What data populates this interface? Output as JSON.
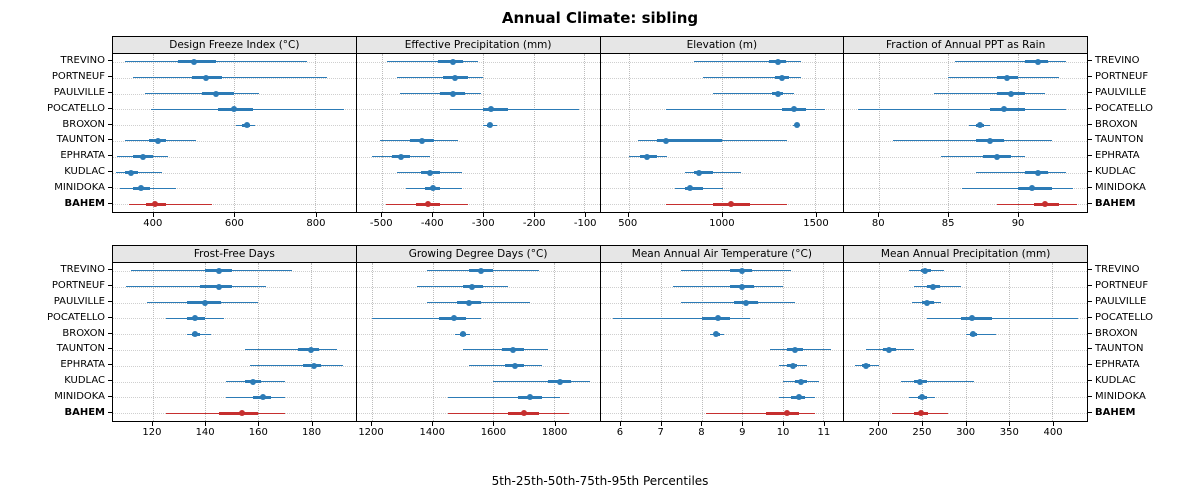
{
  "title": "Annual Climate: sibling",
  "caption": "5th-25th-50th-75th-95th Percentiles",
  "colors": {
    "series_blue": "#2c7bb6",
    "highlight_red": "#c62f2f",
    "strip_bg": "#e6e6e6",
    "grid": "#bcbcbc"
  },
  "chart_data": {
    "type": "scatter",
    "subtype": "percentile-interval-dotplot",
    "title": "Annual Climate: sibling",
    "xlabel_caption": "5th-25th-50th-75th-95th Percentiles",
    "legend_position": "none",
    "grid": true,
    "stations": [
      "TREVINO",
      "PORTNEUF",
      "PAULVILLE",
      "POCATELLO",
      "BROXON",
      "TAUNTON",
      "EPHRATA",
      "KUDLAC",
      "MINIDOKA",
      "BAHEM"
    ],
    "highlight_station": "BAHEM",
    "percentiles": [
      5,
      25,
      50,
      75,
      95
    ],
    "layout": [
      [
        0,
        1,
        2,
        3
      ],
      [
        4,
        5,
        6,
        7
      ]
    ],
    "panels": [
      {
        "title": "Design Freeze Index (°C)",
        "xlim": [
          300,
          900
        ],
        "ticks": [
          400,
          600,
          800
        ],
        "values": [
          [
            330,
            460,
            500,
            555,
            780
          ],
          [
            350,
            495,
            530,
            570,
            830
          ],
          [
            380,
            520,
            555,
            600,
            660
          ],
          [
            395,
            560,
            600,
            645,
            870
          ],
          [
            605,
            620,
            630,
            638,
            650
          ],
          [
            330,
            390,
            410,
            430,
            505
          ],
          [
            310,
            350,
            375,
            400,
            435
          ],
          [
            308,
            330,
            345,
            362,
            420
          ],
          [
            318,
            350,
            370,
            392,
            455
          ],
          [
            340,
            382,
            405,
            432,
            545
          ]
        ]
      },
      {
        "title": "Effective Precipitation (mm)",
        "xlim": [
          -550,
          -70
        ],
        "ticks": [
          -500,
          -400,
          -300,
          -200,
          -100
        ],
        "values": [
          [
            -490,
            -390,
            -360,
            -340,
            -310
          ],
          [
            -470,
            -380,
            -355,
            -330,
            -300
          ],
          [
            -465,
            -385,
            -360,
            -335,
            -305
          ],
          [
            -365,
            -300,
            -285,
            -250,
            -110
          ],
          [
            -300,
            -292,
            -287,
            -282,
            -272
          ],
          [
            -505,
            -445,
            -420,
            -398,
            -350
          ],
          [
            -520,
            -480,
            -463,
            -445,
            -405
          ],
          [
            -470,
            -422,
            -405,
            -386,
            -342
          ],
          [
            -452,
            -416,
            -400,
            -386,
            -342
          ],
          [
            -492,
            -432,
            -410,
            -386,
            -330
          ]
        ]
      },
      {
        "title": "Elevation (m)",
        "xlim": [
          350,
          1650
        ],
        "ticks": [
          500,
          1000,
          1500
        ],
        "values": [
          [
            850,
            1250,
            1300,
            1345,
            1425
          ],
          [
            900,
            1285,
            1320,
            1360,
            1425
          ],
          [
            950,
            1270,
            1300,
            1330,
            1385
          ],
          [
            700,
            1320,
            1385,
            1450,
            1555
          ],
          [
            1380,
            1395,
            1400,
            1408,
            1420
          ],
          [
            550,
            650,
            700,
            1000,
            1350
          ],
          [
            500,
            560,
            600,
            650,
            705
          ],
          [
            800,
            850,
            880,
            950,
            1105
          ],
          [
            750,
            800,
            830,
            900,
            1005
          ],
          [
            700,
            950,
            1050,
            1150,
            1350
          ]
        ]
      },
      {
        "title": "Fraction of Annual PPT as Rain",
        "xlim": [
          77.5,
          95
        ],
        "ticks": [
          80,
          85,
          90
        ],
        "values": [
          [
            85.5,
            90.5,
            91.5,
            92.2,
            93.5
          ],
          [
            85,
            88.5,
            89.2,
            90,
            93
          ],
          [
            84,
            88.5,
            89.5,
            90.5,
            92
          ],
          [
            78.5,
            88,
            89,
            90.5,
            93.5
          ],
          [
            86.5,
            87,
            87.3,
            87.6,
            88
          ],
          [
            81,
            87,
            88,
            89,
            92.5
          ],
          [
            84.5,
            87.5,
            88.5,
            89.5,
            90.5
          ],
          [
            87,
            90.5,
            91.5,
            92.2,
            93.5
          ],
          [
            86,
            90,
            91,
            92.5,
            94
          ],
          [
            88.5,
            91.2,
            92,
            93,
            94.3
          ]
        ]
      },
      {
        "title": "Frost-Free Days",
        "xlim": [
          105,
          197
        ],
        "ticks": [
          120,
          140,
          160,
          180
        ],
        "values": [
          [
            112,
            140,
            145,
            150,
            173
          ],
          [
            110,
            138,
            145,
            150,
            163
          ],
          [
            118,
            133,
            140,
            146,
            160
          ],
          [
            125,
            133,
            136,
            140,
            147
          ],
          [
            133,
            135,
            136,
            138,
            142
          ],
          [
            155,
            175,
            180,
            183,
            190
          ],
          [
            157,
            177,
            181,
            184,
            192
          ],
          [
            148,
            155,
            158,
            161,
            170
          ],
          [
            148,
            158,
            162,
            165,
            170
          ],
          [
            125,
            145,
            154,
            160,
            170
          ]
        ]
      },
      {
        "title": "Growing Degree Days (°C)",
        "xlim": [
          1150,
          1950
        ],
        "ticks": [
          1200,
          1400,
          1600,
          1800
        ],
        "values": [
          [
            1380,
            1520,
            1560,
            1600,
            1750
          ],
          [
            1350,
            1500,
            1530,
            1565,
            1650
          ],
          [
            1380,
            1480,
            1520,
            1560,
            1720
          ],
          [
            1200,
            1420,
            1470,
            1510,
            1560
          ],
          [
            1475,
            1490,
            1500,
            1510,
            1522
          ],
          [
            1500,
            1630,
            1665,
            1700,
            1780
          ],
          [
            1520,
            1640,
            1670,
            1700,
            1760
          ],
          [
            1600,
            1780,
            1820,
            1855,
            1920
          ],
          [
            1450,
            1680,
            1720,
            1760,
            1820
          ],
          [
            1450,
            1650,
            1700,
            1750,
            1850
          ]
        ]
      },
      {
        "title": "Mean Annual Air Temperature (°C)",
        "xlim": [
          5.5,
          11.5
        ],
        "ticks": [
          6,
          7,
          8,
          9,
          10,
          11
        ],
        "values": [
          [
            7.5,
            8.7,
            9.0,
            9.25,
            10.2
          ],
          [
            7.3,
            8.7,
            9.0,
            9.3,
            10.0
          ],
          [
            7.5,
            8.8,
            9.1,
            9.4,
            10.3
          ],
          [
            5.8,
            8.0,
            8.4,
            8.7,
            9.2
          ],
          [
            8.2,
            8.3,
            8.35,
            8.45,
            8.55
          ],
          [
            9.7,
            10.1,
            10.3,
            10.5,
            11.2
          ],
          [
            9.9,
            10.1,
            10.25,
            10.35,
            10.6
          ],
          [
            10.0,
            10.3,
            10.45,
            10.6,
            10.9
          ],
          [
            9.9,
            10.2,
            10.4,
            10.55,
            10.8
          ],
          [
            8.1,
            9.6,
            10.1,
            10.4,
            10.8
          ]
        ]
      },
      {
        "title": "Mean Annual Precipitation (mm)",
        "xlim": [
          160,
          440
        ],
        "ticks": [
          200,
          250,
          300,
          350,
          400
        ],
        "values": [
          [
            235,
            248,
            253,
            260,
            275
          ],
          [
            240,
            255,
            262,
            270,
            295
          ],
          [
            238,
            250,
            256,
            263,
            272
          ],
          [
            255,
            295,
            307,
            330,
            430
          ],
          [
            300,
            305,
            308,
            313,
            335
          ],
          [
            185,
            205,
            212,
            220,
            240
          ],
          [
            172,
            180,
            185,
            190,
            200
          ],
          [
            225,
            240,
            247,
            255,
            310
          ],
          [
            235,
            245,
            250,
            256,
            265
          ],
          [
            215,
            240,
            248,
            257,
            280
          ]
        ]
      }
    ]
  }
}
